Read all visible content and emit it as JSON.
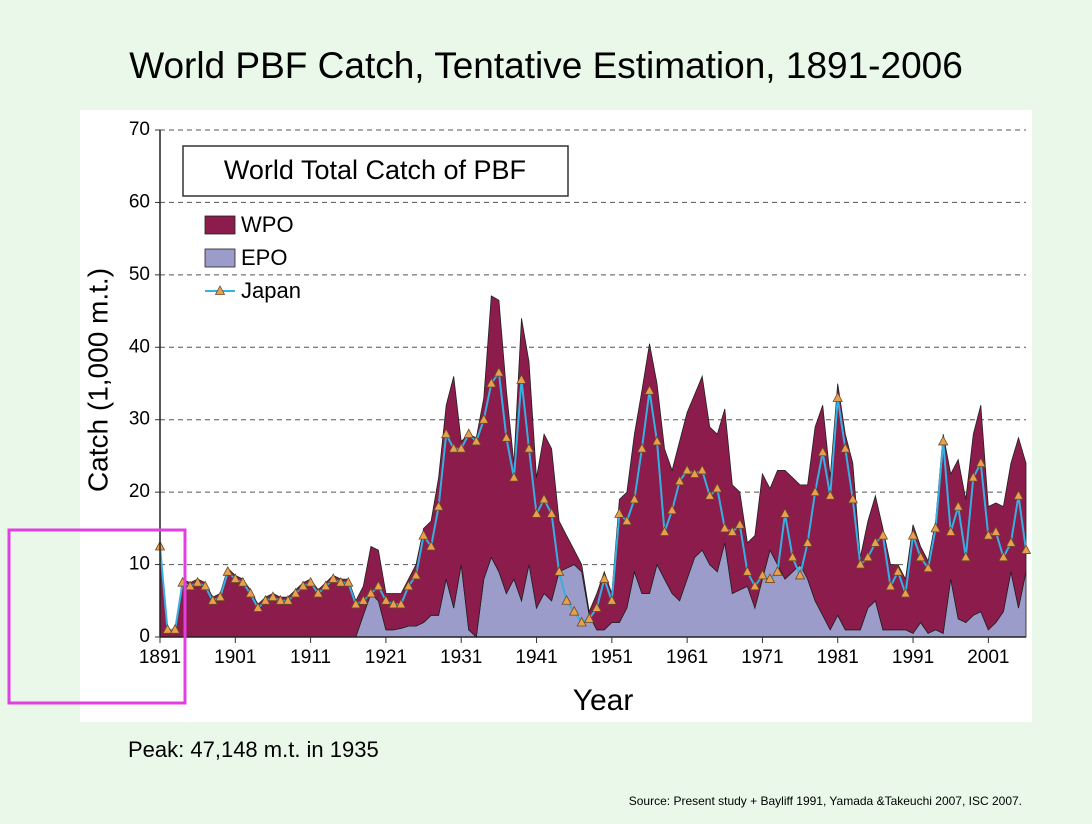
{
  "title": "World PBF Catch, Tentative Estimation, 1891-2006",
  "note": "Peak: 47,148 m.t. in 1935",
  "source": "Source: Present study + Bayliff  1991, Yamada &Takeuchi 2007, ISC 2007.",
  "chart_data": {
    "type": "area",
    "title": "World Total Catch of PBF",
    "x_label": "Year",
    "y_label": "Catch (1,000 m.t.)",
    "stacked": true,
    "legend": "upper left",
    "grid": true,
    "xlim": [
      1891,
      2006
    ],
    "xticks": [
      1891,
      1901,
      1911,
      1921,
      1931,
      1941,
      1951,
      1961,
      1971,
      1981,
      1991,
      2001
    ],
    "ylim": [
      0,
      70
    ],
    "yticks": [
      0,
      10,
      20,
      30,
      40,
      50,
      60,
      70
    ],
    "x": [
      1891,
      1892,
      1893,
      1894,
      1895,
      1896,
      1897,
      1898,
      1899,
      1900,
      1901,
      1902,
      1903,
      1904,
      1905,
      1906,
      1907,
      1908,
      1909,
      1910,
      1911,
      1912,
      1913,
      1914,
      1915,
      1916,
      1917,
      1918,
      1919,
      1920,
      1921,
      1922,
      1923,
      1924,
      1925,
      1926,
      1927,
      1928,
      1929,
      1930,
      1931,
      1932,
      1933,
      1934,
      1935,
      1936,
      1937,
      1938,
      1939,
      1940,
      1941,
      1942,
      1943,
      1944,
      1945,
      1946,
      1947,
      1948,
      1949,
      1950,
      1951,
      1952,
      1953,
      1954,
      1955,
      1956,
      1957,
      1958,
      1959,
      1960,
      1961,
      1962,
      1963,
      1964,
      1965,
      1966,
      1967,
      1968,
      1969,
      1970,
      1971,
      1972,
      1973,
      1974,
      1975,
      1976,
      1977,
      1978,
      1979,
      1980,
      1981,
      1982,
      1983,
      1984,
      1985,
      1986,
      1987,
      1988,
      1989,
      1990,
      1991,
      1992,
      1993,
      1994,
      1995,
      1996,
      1997,
      1998,
      1999,
      2000,
      2001,
      2002,
      2003,
      2004,
      2005,
      2006
    ],
    "series": [
      {
        "name": "WPO",
        "type": "area",
        "color": "#8b1c4c",
        "values": [
          12.5,
          1,
          1,
          8,
          7.5,
          8,
          7.5,
          5.5,
          6,
          9.5,
          8.5,
          8,
          6.5,
          4.5,
          5.5,
          6,
          5.5,
          5.5,
          6.5,
          7.5,
          8,
          6.5,
          7.5,
          8.5,
          8,
          8,
          5,
          4,
          6.5,
          7,
          5,
          5,
          4.8,
          6.5,
          8.5,
          13,
          13,
          19,
          24,
          32,
          17,
          27,
          27.5,
          25,
          36.1,
          37.5,
          28,
          16,
          39,
          28,
          18,
          22,
          21,
          7,
          4.5,
          2,
          1,
          0.5,
          5,
          8,
          4,
          17,
          16,
          19,
          28,
          34.5,
          25,
          18,
          17,
          22,
          23,
          22.5,
          24,
          19,
          19,
          18.5,
          15,
          13.5,
          6,
          10,
          14.5,
          8.5,
          13,
          15,
          13,
          11,
          13,
          24,
          29,
          21,
          32,
          27,
          23,
          10,
          12,
          14.5,
          14,
          9,
          9,
          7,
          15,
          10.5,
          10,
          15,
          27.5,
          14.5,
          22,
          17,
          25,
          28.5,
          17,
          16.5,
          14.5,
          15,
          23.5,
          15
        ]
      },
      {
        "name": "EPO",
        "type": "area",
        "color": "#9c9cca",
        "values": [
          0,
          0,
          0,
          0,
          0,
          0,
          0,
          0,
          0,
          0,
          0,
          0,
          0,
          0,
          0,
          0,
          0,
          0,
          0,
          0,
          0,
          0,
          0,
          0,
          0,
          0,
          0,
          3,
          6,
          5,
          1,
          1,
          1.2,
          1.5,
          1.5,
          2,
          3,
          3,
          8,
          4,
          10,
          1,
          0,
          8,
          11,
          9,
          6,
          8,
          5,
          10,
          4,
          6,
          5,
          9,
          9.5,
          10,
          9,
          3,
          1,
          1,
          2,
          2,
          4,
          9,
          6,
          6,
          10,
          8,
          6,
          5,
          8,
          11,
          12,
          10,
          9,
          13,
          6,
          6.5,
          7,
          4,
          8,
          12,
          10,
          8,
          9,
          10,
          8,
          5,
          3,
          1,
          3,
          1,
          1,
          1,
          4,
          5,
          1,
          1,
          1,
          1,
          0.5,
          2,
          0.5,
          1,
          0.5,
          8,
          2.5,
          2,
          3,
          3.5,
          1,
          2,
          3.5,
          9,
          4,
          9
        ]
      },
      {
        "name": "Japan",
        "type": "line",
        "color": "#35b0e0",
        "marker_color": "#e8a050",
        "values": [
          12.5,
          1,
          1,
          7.5,
          7,
          7.5,
          7,
          5,
          5.5,
          9,
          8,
          7.5,
          6,
          4,
          5,
          5.5,
          5,
          5,
          6,
          7,
          7.5,
          6,
          7,
          8,
          7.5,
          7.5,
          4.5,
          5,
          6,
          7,
          5,
          4.5,
          4.5,
          7,
          8.5,
          14,
          12.5,
          18,
          28,
          26,
          26,
          28,
          27,
          30,
          35,
          36.5,
          27.5,
          22,
          35.5,
          26,
          17,
          19,
          17,
          9,
          5,
          3.5,
          2,
          2.5,
          4,
          8,
          5,
          17,
          16,
          19,
          26,
          34,
          27,
          14.5,
          17.5,
          21.5,
          23,
          22.5,
          23,
          19.5,
          20.5,
          15,
          14.5,
          15.5,
          9,
          7,
          8.5,
          8,
          9,
          17,
          11,
          8.5,
          13,
          20,
          25.5,
          19.5,
          33,
          26,
          19,
          10,
          11,
          13,
          14,
          7,
          9,
          6,
          14,
          11,
          9.5,
          15,
          27,
          14.5,
          18,
          11,
          22,
          24,
          14,
          14.5,
          11,
          13,
          19.5,
          12
        ]
      }
    ]
  }
}
